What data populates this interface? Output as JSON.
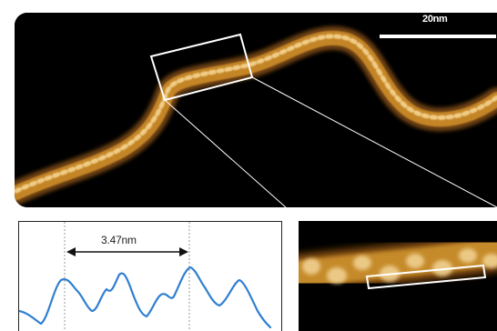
{
  "figure": {
    "scale_bar_label": "20nm",
    "profile_distance_label": "3.47nm"
  },
  "colors": {
    "background": "#000000",
    "afm_fiber": "#c88a2e",
    "afm_highlight": "#f2cf8a",
    "profile_line": "#2f7fd0",
    "annotation": "#ffffff"
  }
}
